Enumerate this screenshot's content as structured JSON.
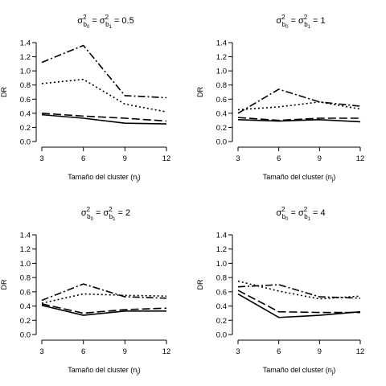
{
  "chart_data": [
    {
      "type": "line",
      "title": "σ²b0 = σ²b1 = 0.5",
      "title_parts": {
        "main": "0.5"
      },
      "xlabel": "Tamaño del cluster (nj)",
      "ylabel": "DR",
      "x": [
        3,
        6,
        9,
        12
      ],
      "xticks": [
        "3",
        "6",
        "9",
        "12"
      ],
      "ylim": [
        0,
        1.4
      ],
      "yticks": [
        "0.0",
        "0.2",
        "0.4",
        "0.6",
        "0.8",
        "1.0",
        "1.2",
        "1.4"
      ],
      "grid": false,
      "series": [
        {
          "style": "solid",
          "values": [
            0.38,
            0.33,
            0.26,
            0.25
          ]
        },
        {
          "style": "dashed",
          "values": [
            0.4,
            0.36,
            0.33,
            0.29
          ]
        },
        {
          "style": "dotted",
          "values": [
            0.82,
            0.88,
            0.53,
            0.42
          ]
        },
        {
          "style": "dashdot",
          "values": [
            1.12,
            1.36,
            0.65,
            0.62
          ]
        }
      ]
    },
    {
      "type": "line",
      "title": "σ²b0 = σ²b1 = 1",
      "title_parts": {
        "main": "1"
      },
      "xlabel": "Tamaño del cluster (nj)",
      "ylabel": "DR",
      "x": [
        3,
        6,
        9,
        12
      ],
      "xticks": [
        "3",
        "6",
        "9",
        "12"
      ],
      "ylim": [
        0,
        1.4
      ],
      "yticks": [
        "0.0",
        "0.2",
        "0.4",
        "0.6",
        "0.8",
        "1.0",
        "1.2",
        "1.4"
      ],
      "grid": false,
      "series": [
        {
          "style": "solid",
          "values": [
            0.31,
            0.29,
            0.31,
            0.28
          ]
        },
        {
          "style": "dashed",
          "values": [
            0.34,
            0.3,
            0.33,
            0.33
          ]
        },
        {
          "style": "dotted",
          "values": [
            0.45,
            0.49,
            0.56,
            0.46
          ]
        },
        {
          "style": "dashdot",
          "values": [
            0.4,
            0.74,
            0.56,
            0.5
          ]
        }
      ]
    },
    {
      "type": "line",
      "title": "σ²b0 = σ²b1 = 2",
      "title_parts": {
        "main": "2"
      },
      "xlabel": "Tamaño del cluster (nj)",
      "ylabel": "DR",
      "x": [
        3,
        6,
        9,
        12
      ],
      "xticks": [
        "3",
        "6",
        "9",
        "12"
      ],
      "ylim": [
        0,
        1.4
      ],
      "yticks": [
        "0.0",
        "0.2",
        "0.4",
        "0.6",
        "0.8",
        "1.0",
        "1.2",
        "1.4"
      ],
      "grid": false,
      "series": [
        {
          "style": "solid",
          "values": [
            0.41,
            0.27,
            0.33,
            0.33
          ]
        },
        {
          "style": "dashed",
          "values": [
            0.43,
            0.3,
            0.35,
            0.37
          ]
        },
        {
          "style": "dotted",
          "values": [
            0.44,
            0.57,
            0.55,
            0.54
          ]
        },
        {
          "style": "dashdot",
          "values": [
            0.48,
            0.71,
            0.53,
            0.51
          ]
        }
      ]
    },
    {
      "type": "line",
      "title": "σ²b0 = σ²b1 = 4",
      "title_parts": {
        "main": "4"
      },
      "xlabel": "Tamaño del cluster (nj)",
      "ylabel": "DR",
      "x": [
        3,
        6,
        9,
        12
      ],
      "xticks": [
        "3",
        "6",
        "9",
        "12"
      ],
      "ylim": [
        0,
        1.4
      ],
      "yticks": [
        "0.0",
        "0.2",
        "0.4",
        "0.6",
        "0.8",
        "1.0",
        "1.2",
        "1.4"
      ],
      "grid": false,
      "series": [
        {
          "style": "solid",
          "values": [
            0.57,
            0.24,
            0.27,
            0.32
          ]
        },
        {
          "style": "dashed",
          "values": [
            0.62,
            0.32,
            0.31,
            0.31
          ]
        },
        {
          "style": "dotted",
          "values": [
            0.75,
            0.61,
            0.5,
            0.54
          ]
        },
        {
          "style": "dashdot",
          "values": [
            0.67,
            0.7,
            0.53,
            0.51
          ]
        }
      ]
    }
  ]
}
